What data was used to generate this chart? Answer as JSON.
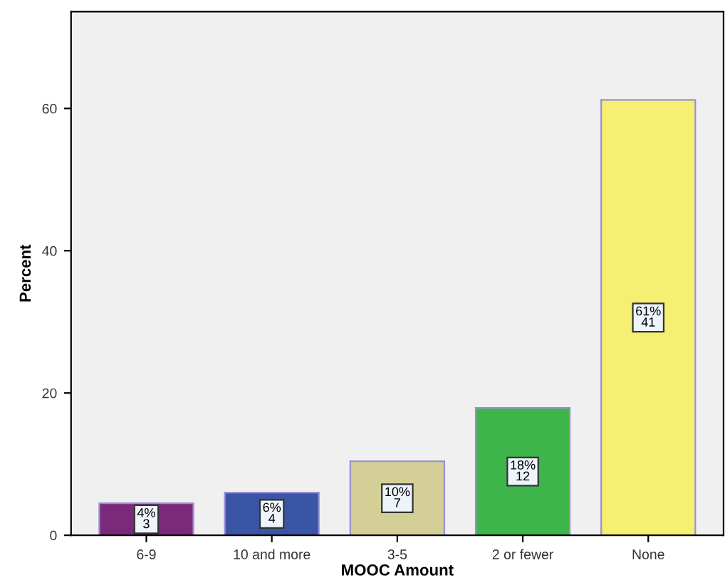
{
  "chart_data": {
    "type": "bar",
    "xlabel": "MOOC Amount",
    "ylabel": "Percent",
    "categories": [
      "6-9",
      "10 and more",
      "3-5",
      "2 or fewer",
      "None"
    ],
    "values": [
      4.5,
      6.0,
      10.4,
      17.9,
      61.2
    ],
    "colors": [
      "#7b2a7a",
      "#3a55a6",
      "#d4cf96",
      "#3db54a",
      "#f5ef72"
    ],
    "value_labels": [
      "4%\n3",
      "6%\n4",
      "10%\n7",
      "18%\n12",
      "61%\n41"
    ],
    "ylim": [
      0,
      73.6
    ],
    "yticks": [
      0,
      20,
      40,
      60
    ],
    "grid": false
  }
}
